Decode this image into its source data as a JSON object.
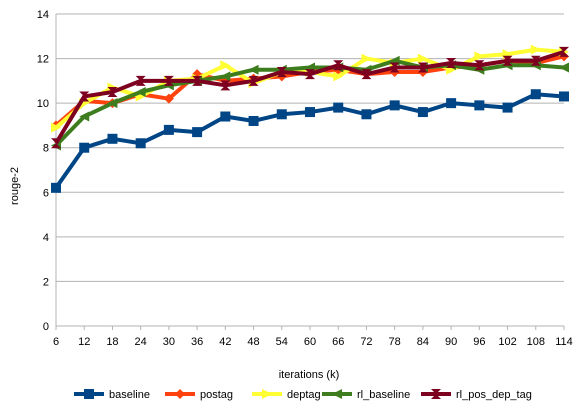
{
  "chart_data": {
    "type": "line",
    "title": "",
    "xlabel": "iterations (k)",
    "ylabel": "rouge-2",
    "categories": [
      "6",
      "12",
      "18",
      "24",
      "30",
      "36",
      "42",
      "48",
      "54",
      "60",
      "66",
      "72",
      "78",
      "84",
      "90",
      "96",
      "102",
      "108",
      "114"
    ],
    "ylim": [
      0,
      14
    ],
    "yticks": [
      0,
      2,
      4,
      6,
      8,
      10,
      12,
      14
    ],
    "grid": true,
    "legend_position": "bottom",
    "series": [
      {
        "name": "baseline",
        "color": "#004586",
        "marker": "square",
        "values": [
          6.2,
          8.0,
          8.4,
          8.2,
          8.8,
          8.7,
          9.4,
          9.2,
          9.5,
          9.6,
          9.8,
          9.5,
          9.9,
          9.6,
          10.0,
          9.9,
          9.8,
          10.4,
          10.3
        ]
      },
      {
        "name": "postag",
        "color": "#ff420e",
        "marker": "diamond",
        "values": [
          9.0,
          10.1,
          10.0,
          10.4,
          10.2,
          11.3,
          11.0,
          11.1,
          11.2,
          11.4,
          11.5,
          11.3,
          11.4,
          11.4,
          11.6,
          11.7,
          11.9,
          11.8,
          12.1
        ]
      },
      {
        "name": "deptag",
        "color": "#ffff33",
        "marker": "triangle-right",
        "values": [
          8.9,
          10.0,
          10.7,
          10.3,
          11.0,
          11.1,
          11.7,
          10.9,
          11.4,
          11.4,
          11.2,
          12.0,
          11.8,
          12.0,
          11.5,
          12.1,
          12.2,
          12.4,
          12.3
        ]
      },
      {
        "name": "rl_baseline",
        "color": "#3e7d1e",
        "marker": "triangle-left",
        "values": [
          8.1,
          9.4,
          10.0,
          10.5,
          10.8,
          11.0,
          11.2,
          11.5,
          11.5,
          11.6,
          11.6,
          11.5,
          11.9,
          11.6,
          11.7,
          11.5,
          11.7,
          11.7,
          11.6
        ]
      },
      {
        "name": "rl_pos_dep_tag",
        "color": "#7e0021",
        "marker": "hourglass",
        "values": [
          8.2,
          10.3,
          10.5,
          11.0,
          11.0,
          11.0,
          10.8,
          11.0,
          11.4,
          11.3,
          11.7,
          11.3,
          11.6,
          11.6,
          11.8,
          11.7,
          11.9,
          11.9,
          12.3
        ]
      }
    ]
  }
}
